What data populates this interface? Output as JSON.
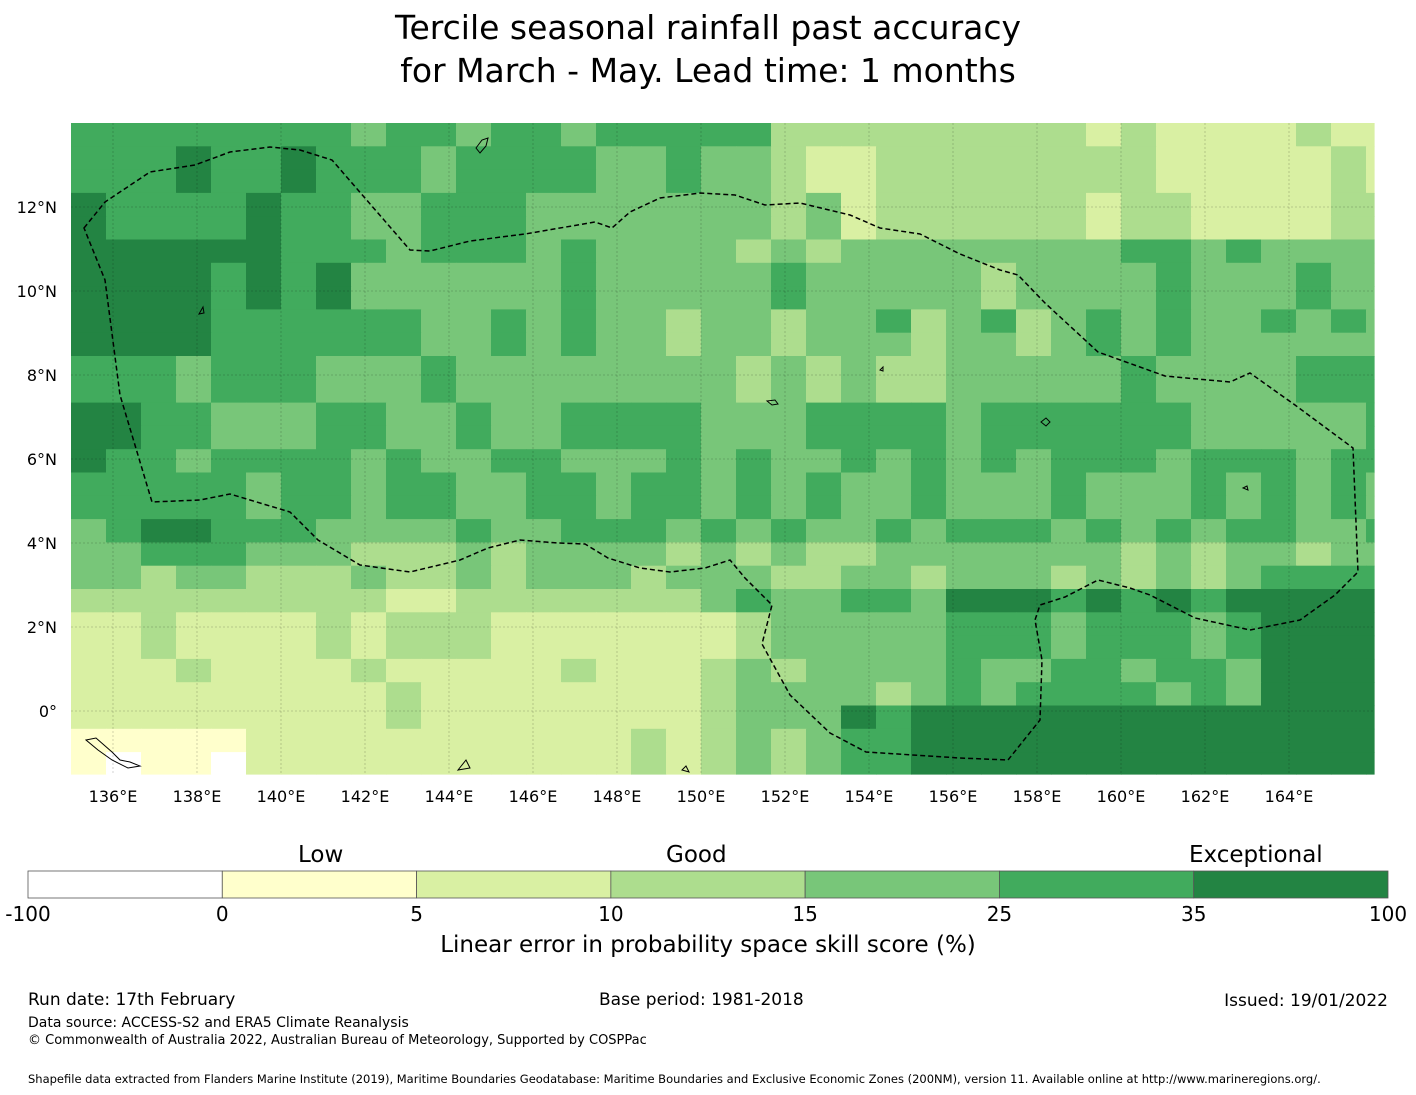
{
  "title": {
    "line1": "Tercile seasonal rainfall past accuracy",
    "line2": "for March - May. Lead time: 1 months"
  },
  "map": {
    "lon_labels": [
      "136°E",
      "138°E",
      "140°E",
      "142°E",
      "144°E",
      "146°E",
      "148°E",
      "150°E",
      "152°E",
      "154°E",
      "156°E",
      "158°E",
      "160°E",
      "162°E",
      "164°E"
    ],
    "lat_labels": [
      "12°N",
      "10°N",
      "8°N",
      "6°N",
      "4°N",
      "2°N",
      "0°"
    ],
    "lon_range": [
      135,
      166
    ],
    "lat_range": [
      -1.5,
      14
    ]
  },
  "legend": {
    "category_labels": [
      "Low",
      "Good",
      "Exceptional"
    ],
    "tick_labels": [
      "-100",
      "0",
      "5",
      "10",
      "15",
      "25",
      "35",
      "100"
    ],
    "colors": [
      "#ffffff",
      "#ffffcc",
      "#d9f0a3",
      "#addd8e",
      "#78c679",
      "#41ab5d",
      "#238443"
    ],
    "axis_label": "Linear error in probability space skill score (%)"
  },
  "footer": {
    "run_date": "Run date: 17th February",
    "base_period": "Base period: 1981-2018",
    "issued": "Issued: 19/01/2022",
    "data_source": "Data source: ACCESS-S2 and ERA5 Climate Reanalysis",
    "copyright": "© Commonwealth of Australia 2022, Australian Bureau of Meteorology, Supported by COSPPac",
    "shapefile_credit": "Shapefile data extracted from Flanders Marine Institute (2019), Maritime Boundaries Geodatabase: Maritime Boundaries and Exclusive Economic Zones (200NM), version 11. Available online at http://www.marineregions.org/."
  }
}
